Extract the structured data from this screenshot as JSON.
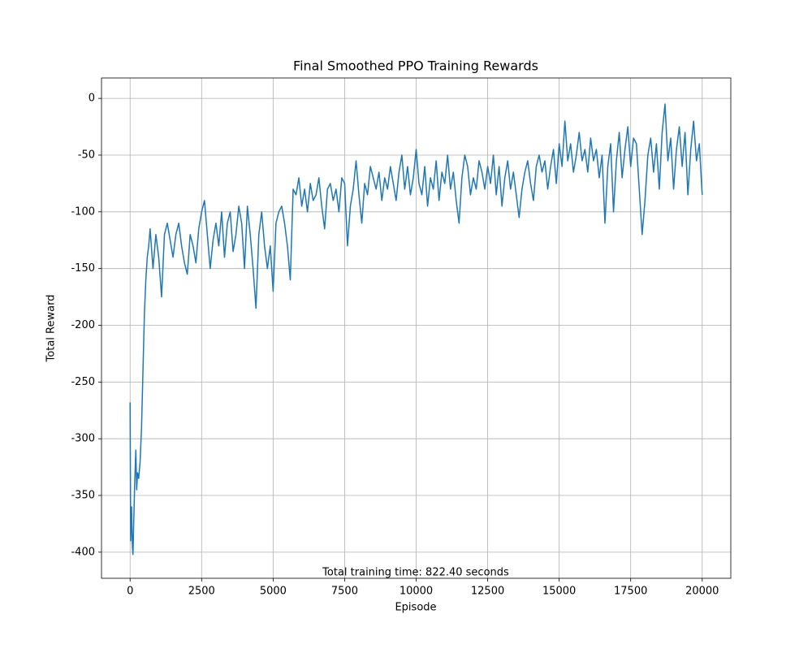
{
  "chart_data": {
    "type": "line",
    "title": "Final Smoothed PPO Training Rewards",
    "x_label": "Episode",
    "y_label": "Total Reward",
    "annotation": "Total training time: 822.40 seconds",
    "xlim": [
      -1000,
      21000
    ],
    "xticks": [
      0,
      2500,
      5000,
      7500,
      10000,
      12500,
      15000,
      17500,
      20000
    ],
    "ylim": [
      -423,
      18
    ],
    "yticks": [
      -400,
      -350,
      -300,
      -250,
      -200,
      -150,
      -100,
      -50,
      0
    ],
    "grid": true,
    "x": [
      0,
      20,
      50,
      80,
      100,
      130,
      160,
      200,
      230,
      260,
      300,
      350,
      400,
      450,
      500,
      550,
      600,
      650,
      700,
      800,
      900,
      1000,
      1100,
      1200,
      1300,
      1400,
      1500,
      1600,
      1700,
      1800,
      1900,
      2000,
      2100,
      2200,
      2300,
      2400,
      2500,
      2600,
      2700,
      2800,
      2900,
      3000,
      3100,
      3200,
      3300,
      3400,
      3500,
      3600,
      3700,
      3800,
      3900,
      4000,
      4100,
      4200,
      4300,
      4400,
      4500,
      4600,
      4700,
      4800,
      4900,
      5000,
      5100,
      5200,
      5300,
      5400,
      5500,
      5600,
      5700,
      5800,
      5900,
      6000,
      6100,
      6200,
      6300,
      6400,
      6500,
      6600,
      6700,
      6800,
      6900,
      7000,
      7100,
      7200,
      7300,
      7400,
      7500,
      7600,
      7700,
      7800,
      7900,
      8000,
      8100,
      8200,
      8300,
      8400,
      8500,
      8600,
      8700,
      8800,
      8900,
      9000,
      9100,
      9200,
      9300,
      9400,
      9500,
      9600,
      9700,
      9800,
      9900,
      10000,
      10100,
      10200,
      10300,
      10400,
      10500,
      10600,
      10700,
      10800,
      10900,
      11000,
      11100,
      11200,
      11300,
      11400,
      11500,
      11600,
      11700,
      11800,
      11900,
      12000,
      12100,
      12200,
      12300,
      12400,
      12500,
      12600,
      12700,
      12800,
      12900,
      13000,
      13100,
      13200,
      13300,
      13400,
      13500,
      13600,
      13700,
      13800,
      13900,
      14000,
      14100,
      14200,
      14300,
      14400,
      14500,
      14600,
      14700,
      14800,
      14900,
      15000,
      15100,
      15200,
      15300,
      15400,
      15500,
      15600,
      15700,
      15800,
      15900,
      16000,
      16100,
      16200,
      16300,
      16400,
      16500,
      16600,
      16700,
      16800,
      16900,
      17000,
      17100,
      17200,
      17300,
      17400,
      17500,
      17600,
      17700,
      17800,
      17900,
      18000,
      18100,
      18200,
      18300,
      18400,
      18500,
      18600,
      18700,
      18800,
      18900,
      19000,
      19100,
      19200,
      19300,
      19400,
      19500,
      19600,
      19700,
      19800,
      19900,
      20000
    ],
    "series": [
      {
        "color": "#1f77b4",
        "values": [
          -268,
          -390,
          -360,
          -395,
          -402,
          -370,
          -340,
          -310,
          -345,
          -330,
          -335,
          -320,
          -290,
          -240,
          -190,
          -160,
          -140,
          -130,
          -115,
          -150,
          -120,
          -140,
          -175,
          -120,
          -110,
          -125,
          -140,
          -120,
          -110,
          -130,
          -145,
          -155,
          -120,
          -130,
          -145,
          -115,
          -100,
          -90,
          -120,
          -150,
          -125,
          -110,
          -130,
          -100,
          -140,
          -110,
          -100,
          -135,
          -120,
          -95,
          -110,
          -150,
          -95,
          -120,
          -150,
          -185,
          -120,
          -100,
          -130,
          -150,
          -130,
          -170,
          -110,
          -100,
          -95,
          -110,
          -130,
          -160,
          -80,
          -85,
          -70,
          -95,
          -80,
          -100,
          -75,
          -90,
          -85,
          -70,
          -95,
          -115,
          -80,
          -75,
          -90,
          -80,
          -100,
          -70,
          -75,
          -130,
          -95,
          -80,
          -55,
          -85,
          -110,
          -75,
          -85,
          -60,
          -70,
          -80,
          -65,
          -90,
          -70,
          -80,
          -60,
          -75,
          -90,
          -65,
          -50,
          -80,
          -60,
          -85,
          -70,
          -45,
          -75,
          -85,
          -60,
          -95,
          -70,
          -80,
          -55,
          -90,
          -65,
          -75,
          -50,
          -80,
          -65,
          -90,
          -110,
          -70,
          -50,
          -60,
          -85,
          -70,
          -80,
          -55,
          -65,
          -80,
          -60,
          -75,
          -50,
          -85,
          -60,
          -95,
          -70,
          -55,
          -80,
          -65,
          -85,
          -105,
          -80,
          -65,
          -55,
          -75,
          -90,
          -60,
          -50,
          -65,
          -55,
          -80,
          -60,
          -45,
          -75,
          -40,
          -60,
          -20,
          -55,
          -40,
          -65,
          -50,
          -30,
          -55,
          -45,
          -65,
          -35,
          -55,
          -45,
          -70,
          -50,
          -110,
          -60,
          -40,
          -100,
          -55,
          -30,
          -70,
          -45,
          -25,
          -60,
          -35,
          -40,
          -80,
          -120,
          -90,
          -50,
          -35,
          -65,
          -40,
          -80,
          -30,
          -5,
          -55,
          -35,
          -80,
          -45,
          -25,
          -60,
          -30,
          -85,
          -45,
          -20,
          -55,
          -40,
          -85
        ]
      }
    ]
  }
}
